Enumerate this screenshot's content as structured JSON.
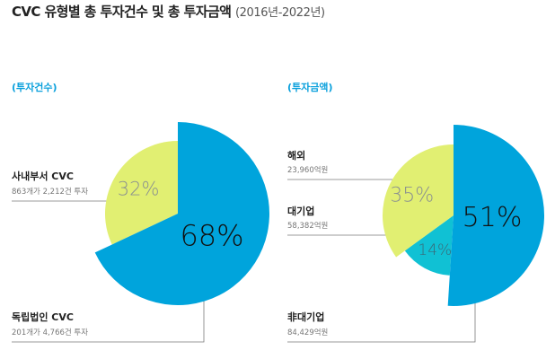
{
  "title": "CVC 유형별 총 투자건수 및 총 투자금액",
  "subtitle": "(2016년-2022년)",
  "colors": {
    "blue": "#00a4dc",
    "green": "#e1ef72",
    "teal": "#10c1d4",
    "line": "#7a7a7a",
    "label_blue": "#0aa0dc"
  },
  "chart_data": [
    {
      "type": "pie",
      "title": "(투자건수)",
      "slices": [
        {
          "name": "사내부서 CVC",
          "detail": "863개가 2,212건 투자",
          "value": 32,
          "label": "32%",
          "color": "#e1ef72"
        },
        {
          "name": "독립법인 CVC",
          "detail": "201개가 4,766건 투자",
          "value": 68,
          "label": "68%",
          "color": "#00a4dc"
        }
      ]
    },
    {
      "type": "pie",
      "title": "(투자금액)",
      "slices": [
        {
          "name": "해외",
          "detail": "23,960억원",
          "value": 14,
          "label": "14%",
          "color": "#10c1d4"
        },
        {
          "name": "대기업",
          "detail": "58,382억원",
          "value": 35,
          "label": "35%",
          "color": "#e1ef72"
        },
        {
          "name": "非대기업",
          "detail": "84,429억원",
          "value": 51,
          "label": "51%",
          "color": "#00a4dc"
        }
      ]
    }
  ]
}
